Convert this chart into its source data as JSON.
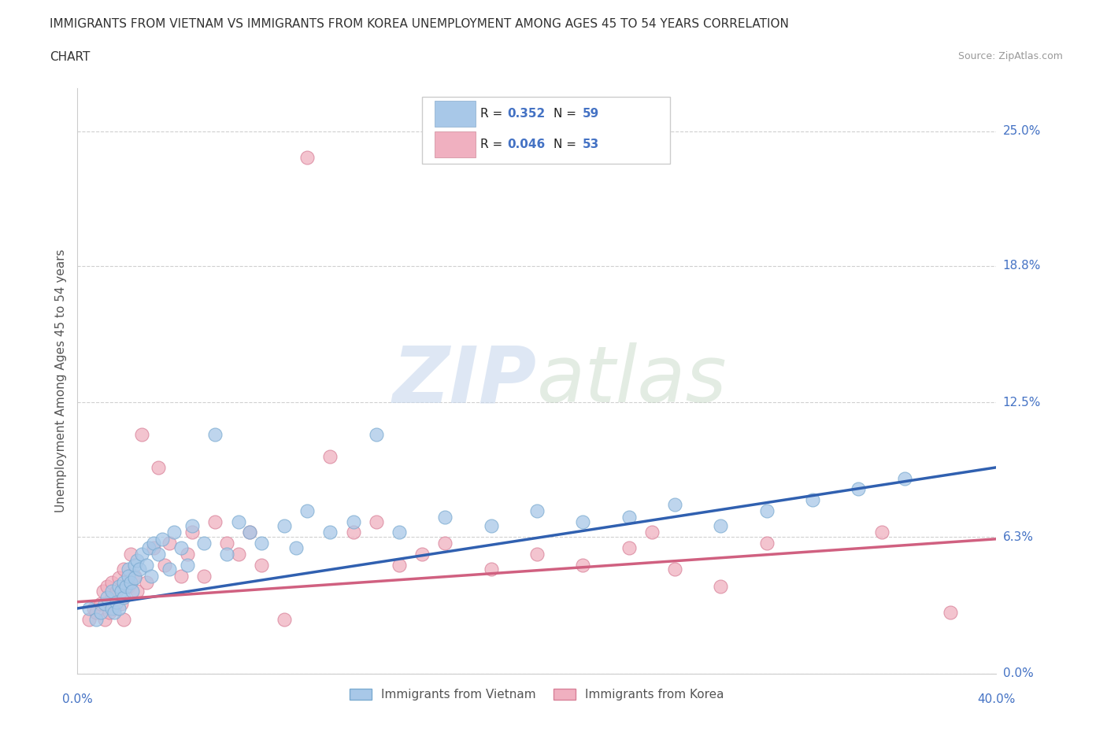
{
  "title_line1": "IMMIGRANTS FROM VIETNAM VS IMMIGRANTS FROM KOREA UNEMPLOYMENT AMONG AGES 45 TO 54 YEARS CORRELATION",
  "title_line2": "CHART",
  "source": "Source: ZipAtlas.com",
  "ylabel": "Unemployment Among Ages 45 to 54 years",
  "xmin": 0.0,
  "xmax": 0.4,
  "ymin": 0.0,
  "ymax": 0.27,
  "ytick_positions": [
    0.0,
    0.063,
    0.125,
    0.188,
    0.25
  ],
  "ytick_labels": [
    "0.0%",
    "6.3%",
    "12.5%",
    "18.8%",
    "25.0%"
  ],
  "vietnam_R": 0.352,
  "vietnam_N": 59,
  "korea_R": 0.046,
  "korea_N": 53,
  "vietnam_color": "#a8c8e8",
  "vietnam_edge_color": "#7aaad0",
  "korea_color": "#f0b0c0",
  "korea_edge_color": "#d88098",
  "vietnam_line_color": "#3060b0",
  "korea_line_color": "#d06080",
  "background_color": "#ffffff",
  "grid_color": "#d0d0d0",
  "watermark_zip": "ZIP",
  "watermark_atlas": "atlas",
  "legend_label_vietnam": "Immigrants from Vietnam",
  "legend_label_korea": "Immigrants from Korea",
  "vietnam_x": [
    0.005,
    0.008,
    0.01,
    0.012,
    0.013,
    0.015,
    0.015,
    0.016,
    0.017,
    0.018,
    0.018,
    0.019,
    0.02,
    0.02,
    0.021,
    0.022,
    0.022,
    0.023,
    0.024,
    0.025,
    0.025,
    0.026,
    0.027,
    0.028,
    0.03,
    0.031,
    0.032,
    0.033,
    0.035,
    0.037,
    0.04,
    0.042,
    0.045,
    0.048,
    0.05,
    0.055,
    0.06,
    0.065,
    0.07,
    0.075,
    0.08,
    0.09,
    0.095,
    0.1,
    0.11,
    0.12,
    0.13,
    0.14,
    0.16,
    0.18,
    0.2,
    0.22,
    0.24,
    0.26,
    0.28,
    0.3,
    0.32,
    0.34,
    0.36
  ],
  "vietnam_y": [
    0.03,
    0.025,
    0.028,
    0.032,
    0.035,
    0.03,
    0.038,
    0.028,
    0.033,
    0.03,
    0.04,
    0.038,
    0.035,
    0.042,
    0.04,
    0.048,
    0.045,
    0.042,
    0.038,
    0.05,
    0.044,
    0.052,
    0.048,
    0.055,
    0.05,
    0.058,
    0.045,
    0.06,
    0.055,
    0.062,
    0.048,
    0.065,
    0.058,
    0.05,
    0.068,
    0.06,
    0.11,
    0.055,
    0.07,
    0.065,
    0.06,
    0.068,
    0.058,
    0.075,
    0.065,
    0.07,
    0.11,
    0.065,
    0.072,
    0.068,
    0.075,
    0.07,
    0.072,
    0.078,
    0.068,
    0.075,
    0.08,
    0.085,
    0.09
  ],
  "korea_x": [
    0.005,
    0.007,
    0.008,
    0.01,
    0.011,
    0.012,
    0.013,
    0.014,
    0.015,
    0.015,
    0.016,
    0.017,
    0.018,
    0.019,
    0.02,
    0.02,
    0.022,
    0.023,
    0.025,
    0.026,
    0.028,
    0.03,
    0.033,
    0.035,
    0.038,
    0.04,
    0.045,
    0.048,
    0.05,
    0.055,
    0.06,
    0.065,
    0.07,
    0.075,
    0.08,
    0.09,
    0.1,
    0.11,
    0.12,
    0.13,
    0.14,
    0.15,
    0.16,
    0.18,
    0.2,
    0.22,
    0.24,
    0.25,
    0.26,
    0.28,
    0.3,
    0.35,
    0.38
  ],
  "korea_y": [
    0.025,
    0.03,
    0.028,
    0.032,
    0.038,
    0.025,
    0.04,
    0.028,
    0.035,
    0.042,
    0.03,
    0.038,
    0.044,
    0.032,
    0.048,
    0.025,
    0.04,
    0.055,
    0.045,
    0.038,
    0.11,
    0.042,
    0.058,
    0.095,
    0.05,
    0.06,
    0.045,
    0.055,
    0.065,
    0.045,
    0.07,
    0.06,
    0.055,
    0.065,
    0.05,
    0.025,
    0.238,
    0.1,
    0.065,
    0.07,
    0.05,
    0.055,
    0.06,
    0.048,
    0.055,
    0.05,
    0.058,
    0.065,
    0.048,
    0.04,
    0.06,
    0.065,
    0.028
  ],
  "vietnam_line_x0": 0.0,
  "vietnam_line_y0": 0.03,
  "vietnam_line_x1": 0.4,
  "vietnam_line_y1": 0.095,
  "korea_line_x0": 0.0,
  "korea_line_y0": 0.033,
  "korea_line_x1": 0.4,
  "korea_line_y1": 0.062
}
